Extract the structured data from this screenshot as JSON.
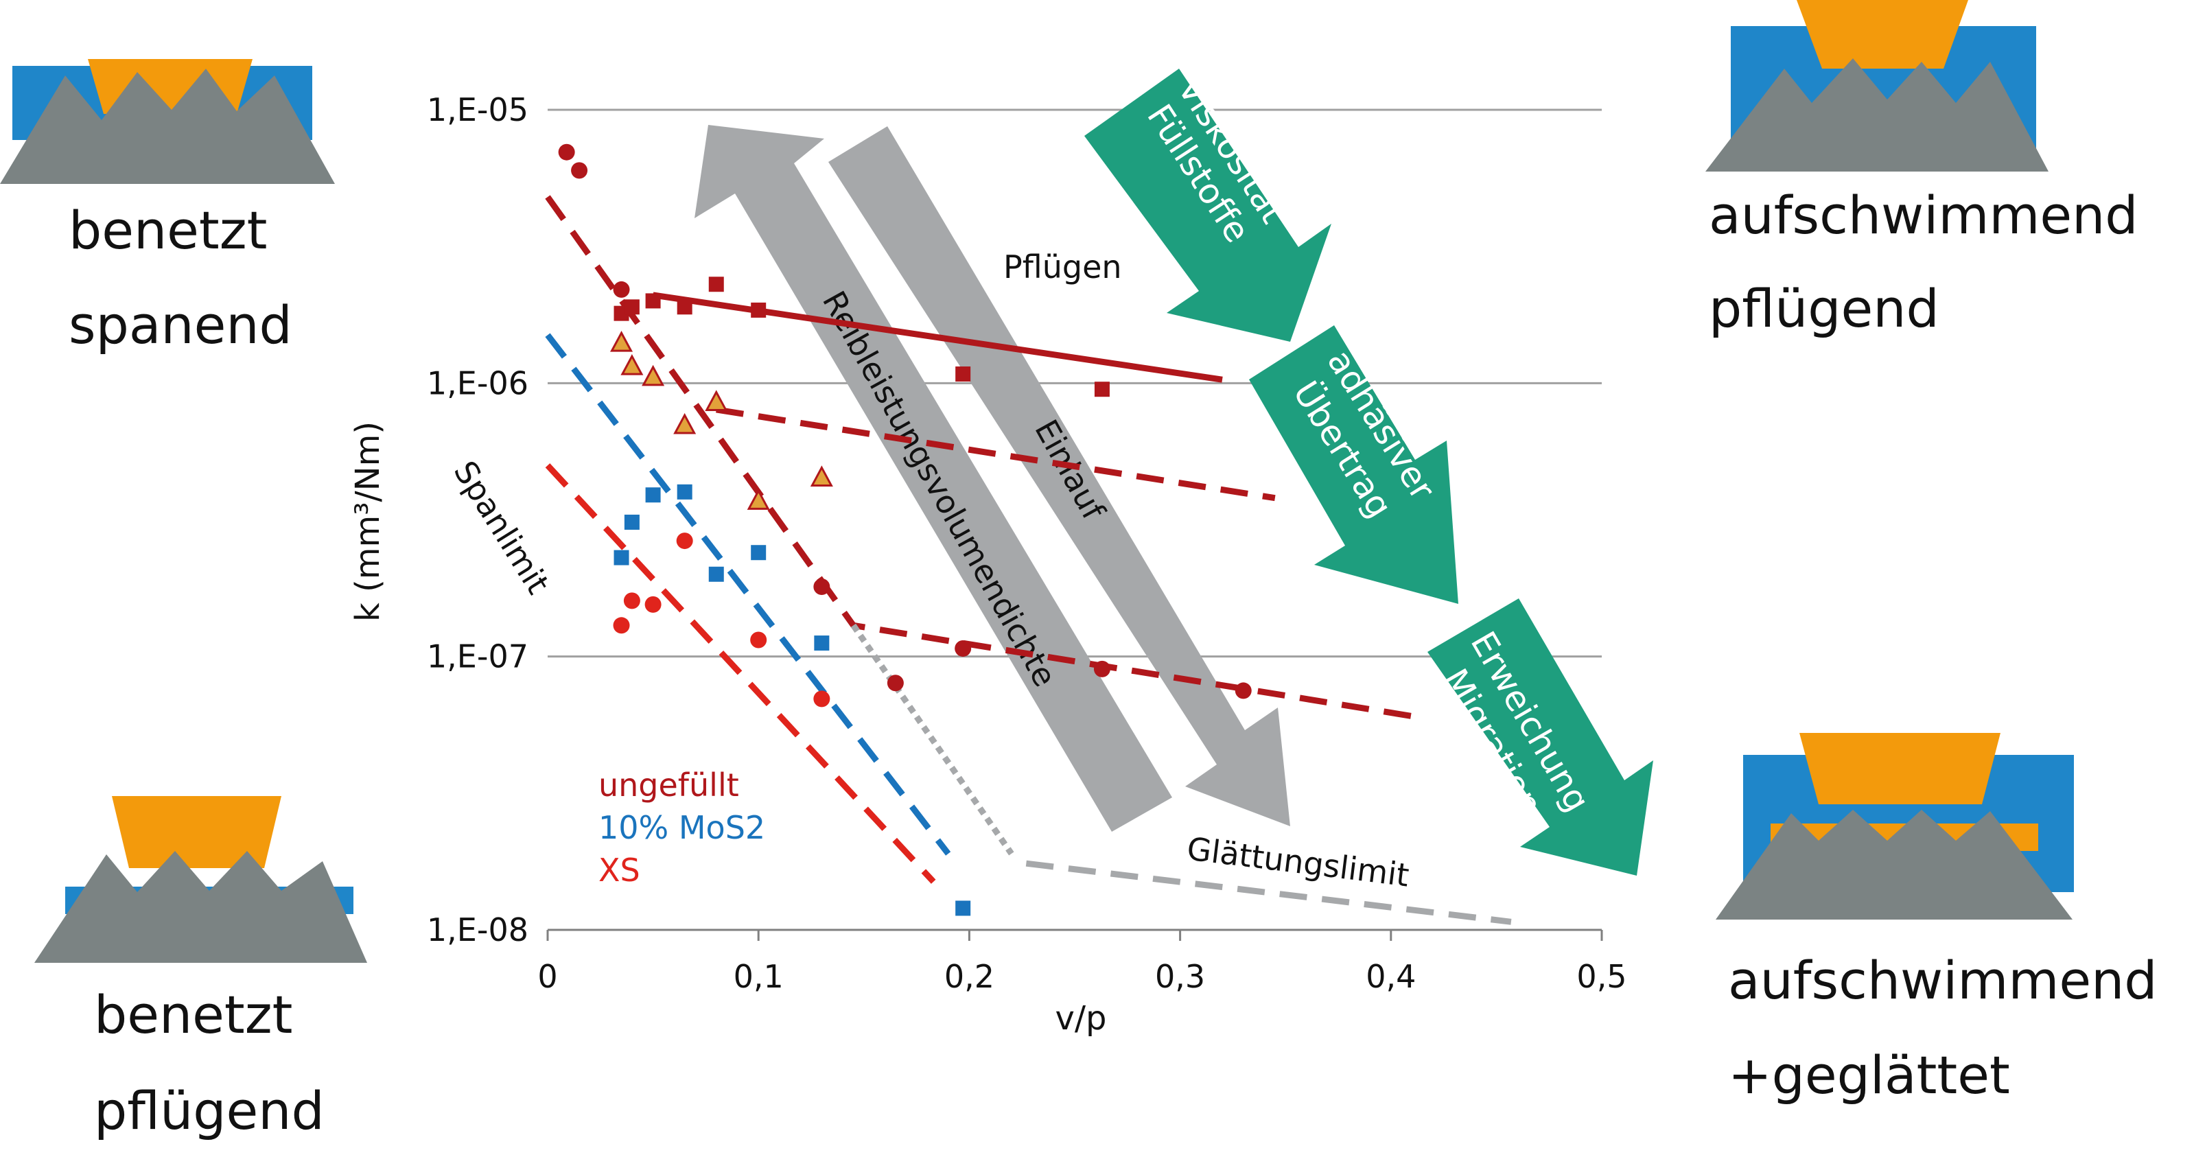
{
  "colors": {
    "ungefuellt": "#b0171b",
    "mos2": "#1a74bd",
    "xs": "#e0241c",
    "triangle_fill": "#e2a23a",
    "grey_arrow": "#a6a8aa",
    "green_arrow": "#1e9e7e",
    "orange_block": "#f39a0c",
    "blue_block": "#1f86c9",
    "grey_peaks": "#7b8383",
    "grid": "#a0a0a0"
  },
  "corner_labels": {
    "top_left": [
      "benetzt",
      "spanend"
    ],
    "top_right": [
      "aufschwimmend",
      "pflügend"
    ],
    "bottom_left": [
      "benetzt",
      "pflügend"
    ],
    "bottom_right": [
      "aufschwimmend",
      "+geglättet"
    ]
  },
  "chart_data": {
    "type": "scatter",
    "xlabel": "v/p",
    "ylabel": "k (mm³/Nm)",
    "xlim": [
      0,
      0.5
    ],
    "ylim": [
      1e-08,
      1e-05
    ],
    "yscale": "log",
    "x_ticks": [
      "0",
      "0,1",
      "0,2",
      "0,3",
      "0,4",
      "0,5"
    ],
    "x_tick_values": [
      0,
      0.1,
      0.2,
      0.3,
      0.4,
      0.5
    ],
    "y_ticks": [
      "1,E-05",
      "1,E-06",
      "1,E-07",
      "1,E-08"
    ],
    "y_tick_values": [
      1e-05,
      1e-06,
      1e-07,
      1e-08
    ],
    "grid": "horizontal",
    "legend_position": "bottom-left",
    "legend": [
      {
        "label": "ungefüllt",
        "color": "#b0171b"
      },
      {
        "label": "10% MoS2",
        "color": "#1a74bd"
      },
      {
        "label": "XS",
        "color": "#e0241c"
      }
    ],
    "series": [
      {
        "color": "#b0171b",
        "marker": "square",
        "points": [
          [
            0.035,
            1.8e-06
          ],
          [
            0.04,
            1.9e-06
          ],
          [
            0.05,
            2e-06
          ],
          [
            0.065,
            1.9e-06
          ],
          [
            0.08,
            2.3e-06
          ],
          [
            0.1,
            1.85e-06
          ],
          [
            0.197,
            1.08e-06
          ],
          [
            0.263,
            9.5e-07
          ]
        ]
      },
      {
        "color": "#b0171b",
        "marker": "circle",
        "points": [
          [
            0.009,
            7e-06
          ],
          [
            0.015,
            6e-06
          ],
          [
            0.035,
            2.2e-06
          ],
          [
            0.13,
            1.8e-07
          ],
          [
            0.165,
            8e-08
          ],
          [
            0.197,
            1.07e-07
          ],
          [
            0.263,
            9e-08
          ],
          [
            0.33,
            7.5e-08
          ]
        ]
      },
      {
        "color": "#e2a23a",
        "marker": "triangle",
        "points": [
          [
            0.035,
            1.4e-06
          ],
          [
            0.04,
            1.15e-06
          ],
          [
            0.05,
            1.05e-06
          ],
          [
            0.065,
            7e-07
          ],
          [
            0.08,
            8.5e-07
          ],
          [
            0.1,
            3.7e-07
          ],
          [
            0.13,
            4.5e-07
          ]
        ]
      },
      {
        "color": "#1a74bd",
        "marker": "square",
        "points": [
          [
            0.035,
            2.3e-07
          ],
          [
            0.04,
            3.1e-07
          ],
          [
            0.05,
            3.9e-07
          ],
          [
            0.065,
            4e-07
          ],
          [
            0.08,
            2e-07
          ],
          [
            0.1,
            2.4e-07
          ],
          [
            0.13,
            1.12e-07
          ],
          [
            0.197,
            1.2e-08
          ]
        ]
      },
      {
        "color": "#e0241c",
        "marker": "circle",
        "points": [
          [
            0.035,
            1.3e-07
          ],
          [
            0.04,
            1.6e-07
          ],
          [
            0.05,
            1.55e-07
          ],
          [
            0.065,
            2.65e-07
          ],
          [
            0.1,
            1.15e-07
          ],
          [
            0.13,
            7e-08
          ]
        ]
      }
    ],
    "lines": [
      {
        "color": "#b0171b",
        "dash": "solid",
        "points": [
          [
            0.05,
            2.1e-06
          ],
          [
            0.32,
            1.03e-06
          ]
        ]
      },
      {
        "color": "#b0171b",
        "dash": "dashed",
        "points": [
          [
            0.08,
            8e-07
          ],
          [
            0.345,
            3.8e-07
          ]
        ]
      },
      {
        "color": "#b0171b",
        "dash": "dashed",
        "points": [
          [
            0.0,
            4.8e-06
          ],
          [
            0.145,
            1.3e-07
          ],
          [
            0.413,
            6e-08
          ]
        ]
      },
      {
        "color": "#1a74bd",
        "dash": "dashed",
        "points": [
          [
            0.0,
            1.5e-06
          ],
          [
            0.19,
            1.9e-08
          ]
        ]
      },
      {
        "color": "#e0241c",
        "dash": "dashed",
        "points": [
          [
            0.0,
            5e-07
          ],
          [
            0.183,
            1.5e-08
          ]
        ]
      },
      {
        "color": "#a6a8aa",
        "dash": "dotted",
        "points": [
          [
            0.145,
            1.3e-07
          ],
          [
            0.22,
            1.9e-08
          ]
        ]
      },
      {
        "color": "#a6a8aa",
        "dash": "dashed",
        "points": [
          [
            0.227,
            1.75e-08
          ],
          [
            0.457,
            1.07e-08
          ]
        ]
      }
    ],
    "annotations": {
      "pfluegen": "Pflügen",
      "spanlimit": "Spanlimit",
      "glaettungslimit": "Glättungslimit",
      "reibleistung": "Reibleistungsvolumendichte",
      "einlauf": "Einlauf",
      "gruen_1": [
        "Viskosität",
        "Füllstoffe"
      ],
      "gruen_2": [
        "adhäsiver",
        "Übertrag"
      ],
      "gruen_3": [
        "Erweichung",
        "Migration"
      ]
    }
  }
}
